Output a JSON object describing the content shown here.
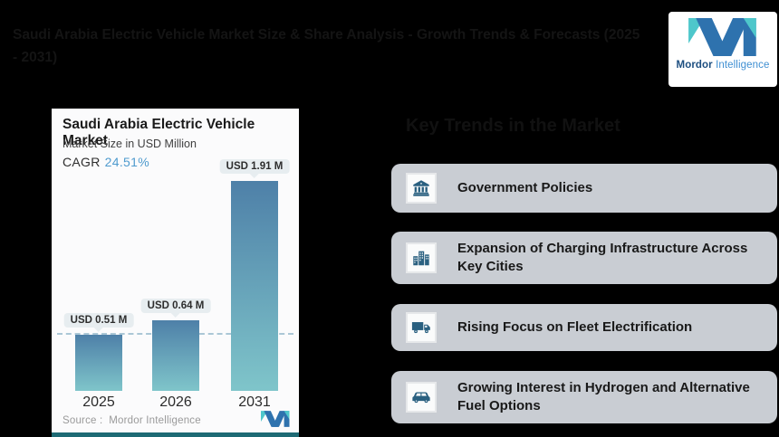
{
  "page": {
    "background": "#000000"
  },
  "header": {
    "title": "Saudi Arabia Electric Vehicle Market Size & Share Analysis - Growth Trends & Forecasts (2025 - 2031)"
  },
  "brand": {
    "name_bold": "Mordor",
    "name_light": "Intelligence",
    "colors": {
      "teal": "#4ec7cb",
      "blue": "#2e72ae",
      "text_bold": "#1c4e80",
      "text_light": "#3f8fd2"
    }
  },
  "chart_data": {
    "type": "bar",
    "title": "Saudi Arabia Electric Vehicle Market",
    "subtitle": "Market Size in USD Million",
    "cagr_label": "CAGR",
    "cagr_value": "24.51%",
    "categories": [
      "2025",
      "2026",
      "2031"
    ],
    "values": [
      0.51,
      0.64,
      1.91
    ],
    "value_labels": [
      "USD 0.51 M",
      "USD 0.64 M",
      "USD 1.91 M"
    ],
    "unit": "USD Million",
    "ylim": [
      0,
      2
    ],
    "grid": false,
    "legend": false,
    "reference_line_value": 0.51,
    "bar_gradient_top": "#4e80a8",
    "bar_gradient_bottom": "#7fc5ca",
    "source_label": "Source :",
    "source_value": "Mordor Intelligence"
  },
  "trends": {
    "heading": "Key Trends in the Market",
    "cards": [
      {
        "icon": "bank-icon",
        "label": "Government Policies"
      },
      {
        "icon": "city-buildings-icon",
        "label": "Expansion of Charging Infrastructure Across Key Cities"
      },
      {
        "icon": "truck-icon",
        "label": "Rising Focus on Fleet Electrification"
      },
      {
        "icon": "car-icon",
        "label": "Growing Interest in Hydrogen and Alternative Fuel Options"
      }
    ]
  }
}
